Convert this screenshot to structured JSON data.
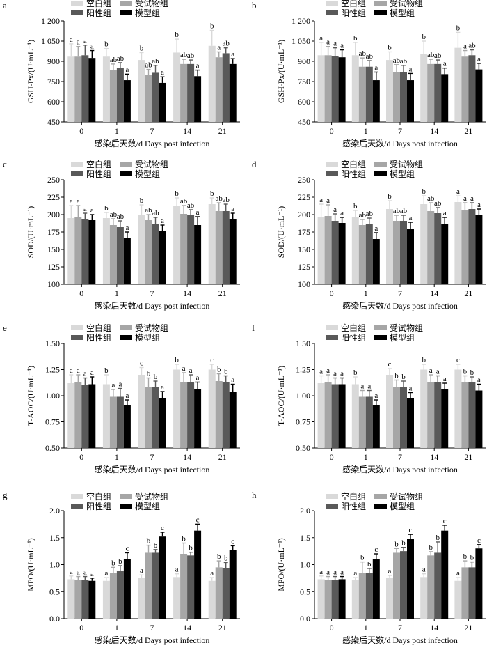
{
  "legend_labels": [
    "空白组",
    "受试物组",
    "阳性组",
    "模型组"
  ],
  "colors": [
    "#d9d9d9",
    "#a6a6a6",
    "#595959",
    "#000000"
  ],
  "x_axis_label": "感染后天数/d Days post infection",
  "chart_data": [
    {
      "panel": "a",
      "type": "bar",
      "ylabel": "GSH-Px/(U·mL⁻¹)",
      "ylim": [
        450,
        1200
      ],
      "yticks": [
        "450",
        "600",
        "750",
        "900",
        "1 050",
        "1 200"
      ],
      "categories": [
        "0",
        "1",
        "7",
        "14",
        "21"
      ],
      "series": [
        {
          "name": "空白组",
          "values": [
            935,
            935,
            910,
            965,
            1015
          ],
          "errors": [
            95,
            60,
            55,
            100,
            115
          ],
          "labels": [
            "a",
            "b",
            "b",
            "b",
            "b"
          ]
        },
        {
          "name": "受试物组",
          "values": [
            935,
            835,
            800,
            880,
            930
          ],
          "errors": [
            75,
            45,
            40,
            35,
            40
          ],
          "labels": [
            "a",
            "ab",
            "ab",
            "ab",
            "a"
          ]
        },
        {
          "name": "阳性组",
          "values": [
            945,
            850,
            815,
            880,
            960
          ],
          "errors": [
            75,
            40,
            55,
            30,
            40
          ],
          "labels": [
            "a",
            "ab",
            "ab",
            "ab",
            "ab"
          ]
        },
        {
          "name": "模型组",
          "values": [
            925,
            760,
            740,
            790,
            880
          ],
          "errors": [
            55,
            45,
            45,
            45,
            40
          ],
          "labels": [
            "a",
            "a",
            "a",
            "a",
            "a"
          ]
        }
      ]
    },
    {
      "panel": "b",
      "type": "bar",
      "ylabel": "GSH-Px/(U·mL⁻¹)",
      "ylim": [
        450,
        1200
      ],
      "yticks": [
        "450",
        "600",
        "750",
        "900",
        "1 050",
        "1 200"
      ],
      "categories": [
        "0",
        "1",
        "7",
        "14",
        "21"
      ],
      "series": [
        {
          "name": "空白组",
          "values": [
            945,
            945,
            910,
            955,
            1000
          ],
          "errors": [
            95,
            95,
            60,
            95,
            115
          ],
          "labels": [
            "a",
            "b",
            "b",
            "b",
            "b"
          ]
        },
        {
          "name": "受试物组",
          "values": [
            945,
            860,
            820,
            880,
            935
          ],
          "errors": [
            65,
            65,
            55,
            35,
            45
          ],
          "labels": [
            "a",
            "ab",
            "ab",
            "ab",
            "a"
          ]
        },
        {
          "name": "阳性组",
          "values": [
            940,
            860,
            820,
            880,
            945
          ],
          "errors": [
            60,
            45,
            50,
            30,
            40
          ],
          "labels": [
            "a",
            "ab",
            "ab",
            "ab",
            "ab"
          ]
        },
        {
          "name": "模型组",
          "values": [
            930,
            760,
            760,
            805,
            840
          ],
          "errors": [
            55,
            60,
            50,
            45,
            45
          ],
          "labels": [
            "a",
            "a",
            "a",
            "a",
            "a"
          ]
        }
      ]
    },
    {
      "panel": "c",
      "type": "bar",
      "ylabel": "SOD/(U·mL⁻¹)",
      "ylim": [
        100,
        250
      ],
      "yticks": [
        "100",
        "125",
        "150",
        "175",
        "200",
        "225",
        "250"
      ],
      "categories": [
        "0",
        "1",
        "7",
        "14",
        "21"
      ],
      "series": [
        {
          "name": "空白组",
          "values": [
            195,
            195,
            200,
            212,
            215
          ],
          "errors": [
            18,
            8,
            14,
            12,
            9
          ],
          "labels": [
            "a",
            "b",
            "b",
            "b",
            "b"
          ]
        },
        {
          "name": "受试物组",
          "values": [
            197,
            185,
            192,
            201,
            205
          ],
          "errors": [
            16,
            9,
            8,
            12,
            12
          ],
          "labels": [
            "a",
            "ab",
            "ab",
            "ab",
            "ab"
          ]
        },
        {
          "name": "阳性组",
          "values": [
            193,
            182,
            186,
            200,
            205
          ],
          "errors": [
            9,
            9,
            10,
            7,
            10
          ],
          "labels": [
            "a",
            "ab",
            "ab",
            "ab",
            "ab"
          ]
        },
        {
          "name": "模型组",
          "values": [
            192,
            167,
            176,
            185,
            193
          ],
          "errors": [
            8,
            8,
            9,
            12,
            9
          ],
          "labels": [
            "a",
            "a",
            "a",
            "a",
            "a"
          ]
        }
      ]
    },
    {
      "panel": "d",
      "type": "bar",
      "ylabel": "SOD/(U·mL⁻¹)",
      "ylim": [
        100,
        250
      ],
      "yticks": [
        "100",
        "125",
        "150",
        "175",
        "200",
        "225",
        "250"
      ],
      "categories": [
        "0",
        "1",
        "7",
        "14",
        "21"
      ],
      "series": [
        {
          "name": "空白组",
          "values": [
            197,
            197,
            208,
            215,
            218
          ],
          "errors": [
            18,
            9,
            12,
            12,
            9
          ],
          "labels": [
            "a",
            "b",
            "b",
            "b",
            "a"
          ]
        },
        {
          "name": "受试物组",
          "values": [
            198,
            185,
            191,
            205,
            207
          ],
          "errors": [
            16,
            8,
            8,
            12,
            10
          ],
          "labels": [
            "a",
            "ab",
            "ab",
            "ab",
            "a"
          ]
        },
        {
          "name": "阳性组",
          "values": [
            191,
            186,
            191,
            202,
            208
          ],
          "errors": [
            10,
            9,
            8,
            8,
            9
          ],
          "labels": [
            "a",
            "ab",
            "ab",
            "ab",
            "a"
          ]
        },
        {
          "name": "模型组",
          "values": [
            188,
            165,
            180,
            186,
            199
          ],
          "errors": [
            8,
            9,
            9,
            10,
            9
          ],
          "labels": [
            "a",
            "a",
            "a",
            "a",
            "a"
          ]
        }
      ]
    },
    {
      "panel": "e",
      "type": "bar",
      "ylabel": "T-AOC/(U·mL⁻¹)",
      "ylim": [
        0.5,
        1.5
      ],
      "yticks": [
        "0.50",
        "0.75",
        "1.00",
        "1.25",
        "1.50"
      ],
      "categories": [
        "0",
        "1",
        "7",
        "14",
        "21"
      ],
      "series": [
        {
          "name": "空白组",
          "values": [
            1.12,
            1.11,
            1.2,
            1.25,
            1.25
          ],
          "errors": [
            0.08,
            0.09,
            0.07,
            0.05,
            0.05
          ],
          "labels": [
            "a",
            "b",
            "c",
            "b",
            "c"
          ]
        },
        {
          "name": "受试物组",
          "values": [
            1.13,
            0.99,
            1.08,
            1.13,
            1.14
          ],
          "errors": [
            0.07,
            0.07,
            0.09,
            0.09,
            0.07
          ],
          "labels": [
            "a",
            "a",
            "b",
            "a",
            "b"
          ]
        },
        {
          "name": "阳性组",
          "values": [
            1.1,
            0.99,
            1.08,
            1.13,
            1.13
          ],
          "errors": [
            0.07,
            0.08,
            0.06,
            0.07,
            0.06
          ],
          "labels": [
            "a",
            "a",
            "b",
            "a",
            "b"
          ]
        },
        {
          "name": "模型组",
          "values": [
            1.11,
            0.91,
            0.98,
            1.06,
            1.04
          ],
          "errors": [
            0.07,
            0.05,
            0.06,
            0.07,
            0.07
          ],
          "labels": [
            "a",
            "a",
            "a",
            "a",
            "a"
          ]
        }
      ]
    },
    {
      "panel": "f",
      "type": "bar",
      "ylabel": "T-AOC/(U·mL⁻¹)",
      "ylim": [
        0.5,
        1.5
      ],
      "yticks": [
        "0.50",
        "0.75",
        "1.00",
        "1.25",
        "1.50"
      ],
      "categories": [
        "0",
        "1",
        "7",
        "14",
        "21"
      ],
      "series": [
        {
          "name": "空白组",
          "values": [
            1.12,
            1.11,
            1.2,
            1.25,
            1.25
          ],
          "errors": [
            0.07,
            0.07,
            0.06,
            0.05,
            0.05
          ],
          "labels": [
            "a",
            "b",
            "c",
            "b",
            "c"
          ]
        },
        {
          "name": "受试物组",
          "values": [
            1.13,
            0.99,
            1.08,
            1.13,
            1.13
          ],
          "errors": [
            0.07,
            0.06,
            0.07,
            0.07,
            0.06
          ],
          "labels": [
            "a",
            "a",
            "b",
            "a",
            "b"
          ]
        },
        {
          "name": "阳性组",
          "values": [
            1.11,
            0.99,
            1.08,
            1.13,
            1.13
          ],
          "errors": [
            0.06,
            0.06,
            0.06,
            0.06,
            0.05
          ],
          "labels": [
            "a",
            "a",
            "b",
            "a",
            "b"
          ]
        },
        {
          "name": "模型组",
          "values": [
            1.11,
            0.91,
            0.98,
            1.06,
            1.05
          ],
          "errors": [
            0.06,
            0.05,
            0.05,
            0.06,
            0.06
          ],
          "labels": [
            "a",
            "a",
            "a",
            "a",
            "a"
          ]
        }
      ]
    },
    {
      "panel": "g",
      "type": "bar",
      "ylabel": "MPO/(U·mL⁻¹)",
      "ylim": [
        0,
        2.0
      ],
      "yticks": [
        "0.0",
        "0.5",
        "1.0",
        "1.5",
        "2.0"
      ],
      "categories": [
        "0",
        "1",
        "7",
        "14",
        "21"
      ],
      "series": [
        {
          "name": "空白组",
          "values": [
            0.73,
            0.7,
            0.75,
            0.77,
            0.7
          ],
          "errors": [
            0.06,
            0.06,
            0.06,
            0.06,
            0.06
          ],
          "labels": [
            "a",
            "a",
            "a",
            "a",
            "a"
          ]
        },
        {
          "name": "受试物组",
          "values": [
            0.72,
            0.85,
            1.22,
            1.2,
            0.95
          ],
          "errors": [
            0.06,
            0.1,
            0.14,
            0.2,
            0.12
          ],
          "labels": [
            "a",
            "b",
            "b",
            "b",
            "b"
          ]
        },
        {
          "name": "阳性组",
          "values": [
            0.72,
            0.88,
            1.22,
            1.17,
            0.94
          ],
          "errors": [
            0.06,
            0.1,
            0.06,
            0.06,
            0.1
          ],
          "labels": [
            "a",
            "b",
            "b",
            "b",
            "b"
          ]
        },
        {
          "name": "模型组",
          "values": [
            0.7,
            1.1,
            1.52,
            1.63,
            1.27
          ],
          "errors": [
            0.05,
            0.12,
            0.08,
            0.12,
            0.08
          ],
          "labels": [
            "a",
            "c",
            "c",
            "c",
            "c"
          ]
        }
      ]
    },
    {
      "panel": "h",
      "type": "bar",
      "ylabel": "MPO/(U·mL⁻¹)",
      "ylim": [
        0,
        2.0
      ],
      "yticks": [
        "0.0",
        "0.5",
        "1.0",
        "1.5",
        "2.0"
      ],
      "categories": [
        "0",
        "1",
        "7",
        "14",
        "21"
      ],
      "series": [
        {
          "name": "空白组",
          "values": [
            0.73,
            0.71,
            0.75,
            0.77,
            0.7
          ],
          "errors": [
            0.06,
            0.05,
            0.05,
            0.06,
            0.06
          ],
          "labels": [
            "a",
            "a",
            "a",
            "a",
            "a"
          ]
        },
        {
          "name": "受试物组",
          "values": [
            0.72,
            0.85,
            1.22,
            1.17,
            0.95
          ],
          "errors": [
            0.06,
            0.2,
            0.08,
            0.07,
            0.12
          ],
          "labels": [
            "a",
            "b",
            "b",
            "b",
            "b"
          ]
        },
        {
          "name": "阳性组",
          "values": [
            0.72,
            0.85,
            1.25,
            1.22,
            0.95
          ],
          "errors": [
            0.06,
            0.08,
            0.07,
            0.2,
            0.1
          ],
          "labels": [
            "a",
            "b",
            "b",
            "b",
            "b"
          ]
        },
        {
          "name": "模型组",
          "values": [
            0.73,
            1.1,
            1.48,
            1.63,
            1.3
          ],
          "errors": [
            0.05,
            0.1,
            0.08,
            0.1,
            0.07
          ],
          "labels": [
            "a",
            "c",
            "c",
            "c",
            "c"
          ]
        }
      ]
    }
  ]
}
